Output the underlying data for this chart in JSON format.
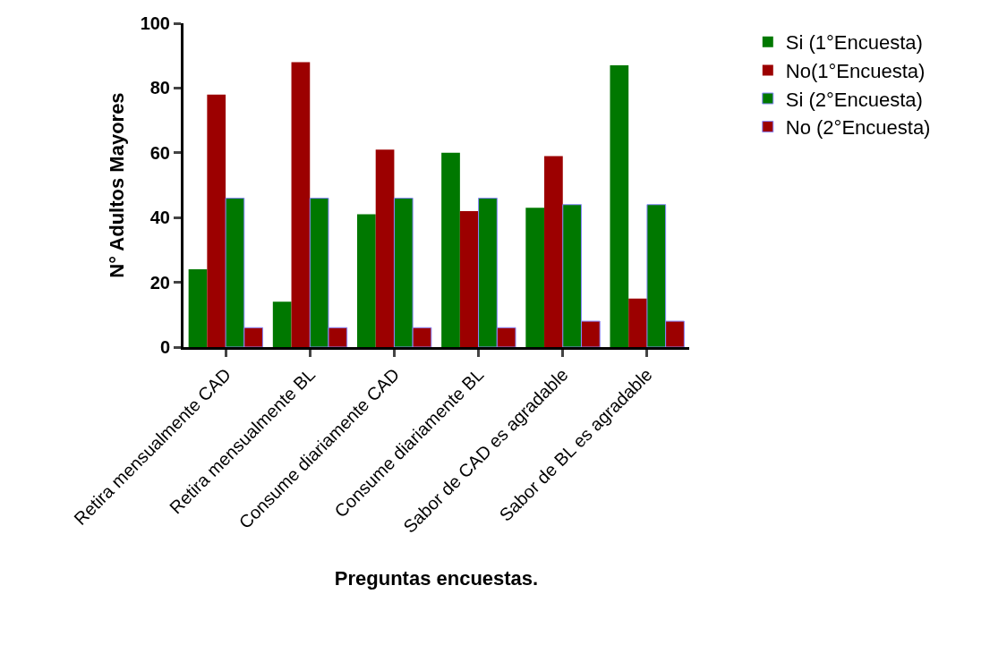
{
  "chart_data": {
    "type": "bar",
    "xlabel": "Preguntas encuestas.",
    "ylabel": "N° Adultos Mayores",
    "categories": [
      "Retira mensualmente CAD",
      "Retira mensualmente BL",
      "Consume diariamente CAD",
      "Consume diariamente BL",
      "Sabor de CAD es agradable",
      "Sabor de BL es agradable"
    ],
    "series": [
      {
        "name": "Si (1°Encuesta)",
        "color": "#007800",
        "values": [
          24,
          14,
          41,
          60,
          43,
          87
        ]
      },
      {
        "name": "No(1°Encuesta)",
        "color": "#9c0000",
        "values": [
          78,
          88,
          61,
          42,
          59,
          15
        ]
      },
      {
        "name": "Si (2°Encuesta)",
        "color": "#007800",
        "values": [
          46,
          46,
          46,
          46,
          44,
          44
        ]
      },
      {
        "name": "No (2°Encuesta)",
        "color": "#9c0000",
        "values": [
          6,
          6,
          6,
          6,
          8,
          8
        ]
      }
    ],
    "ylim": [
      0,
      100
    ],
    "yticks": [
      0,
      20,
      40,
      60,
      80,
      100
    ],
    "legend": "top right"
  }
}
